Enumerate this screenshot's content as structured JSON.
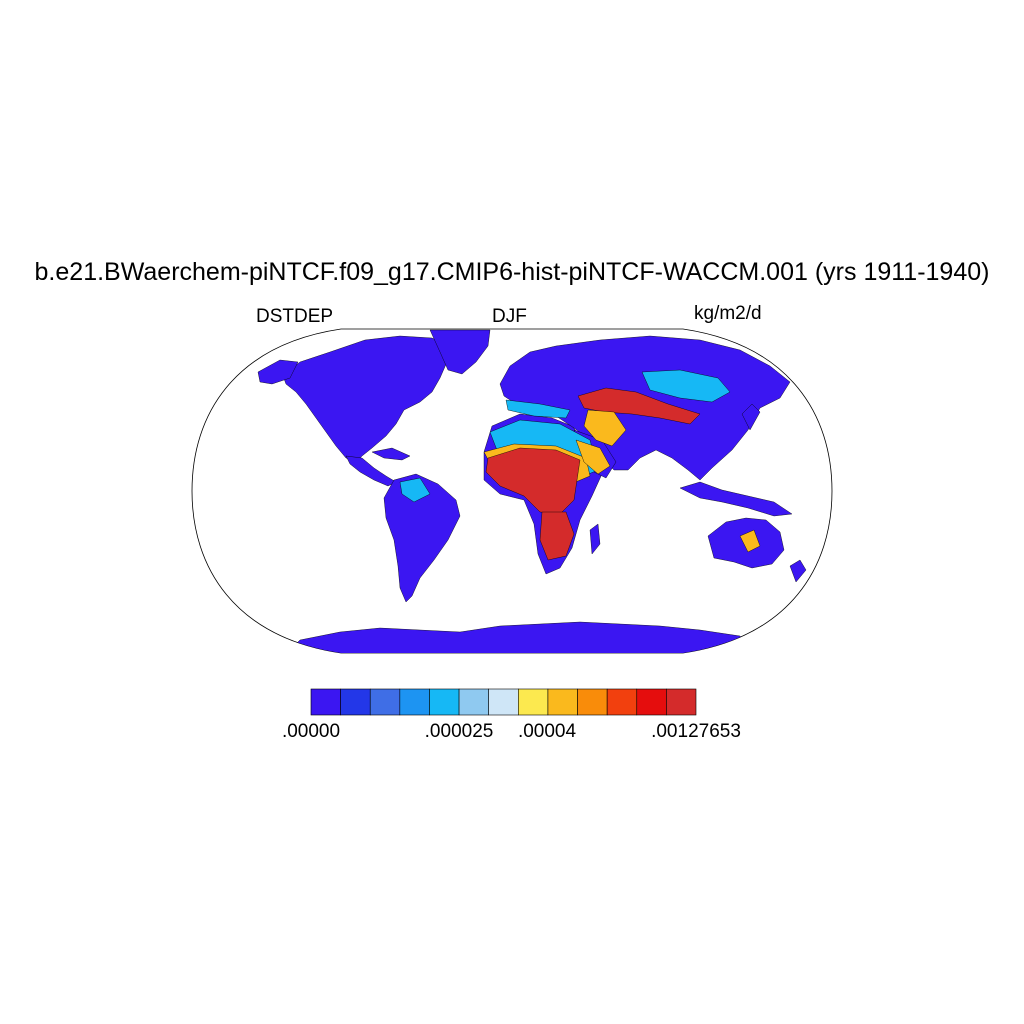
{
  "title": "b.e21.BWaerchem-piNTCF.f09_g17.CMIP6-hist-piNTCF-WACCM.001 (yrs 1911-1940)",
  "variable": "DSTDEP",
  "season": "DJF",
  "units": "kg/m2/d",
  "projection": "Robinson",
  "colorbar": {
    "colors": [
      "#3b16f2",
      "#2337e8",
      "#3f6ee6",
      "#1d94f2",
      "#16b8f5",
      "#8fc9f0",
      "#cfe6f7",
      "#fce94f",
      "#fab91d",
      "#f98c0a",
      "#f2400e",
      "#e50d0d",
      "#d42b2b"
    ],
    "tick_labels": [
      ".00000",
      ".000025",
      ".00004",
      ".00127653"
    ]
  },
  "map_colors": {
    "low": "#3b16f2",
    "medium": "#16b8f5",
    "high": "#fab91d",
    "very_high": "#d42b2b"
  }
}
